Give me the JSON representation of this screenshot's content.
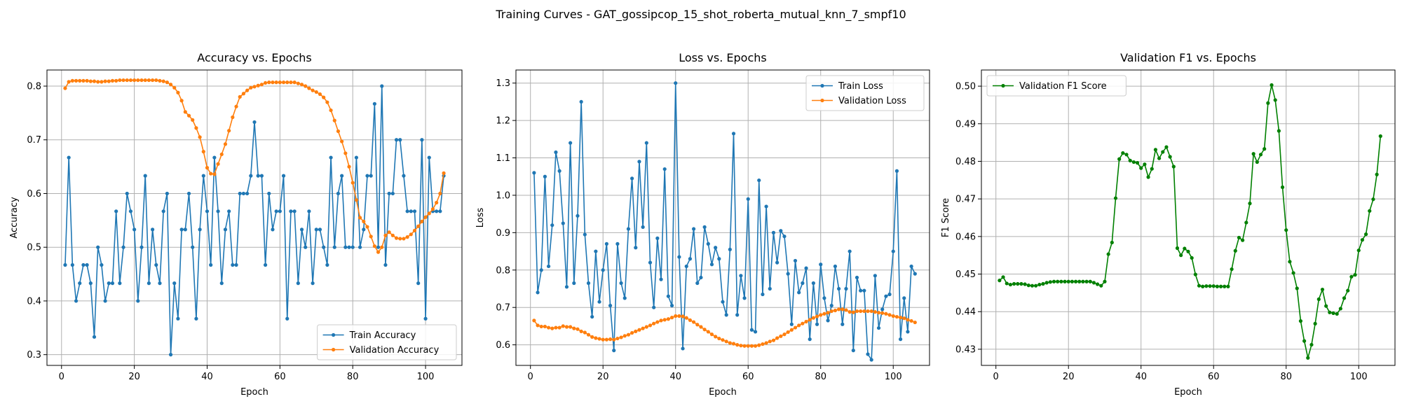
{
  "suptitle": "Training Curves - GAT_gossipcop_15_shot_roberta_mutual_knn_7_smpf10",
  "colors": {
    "train": "#1f77b4",
    "validation": "#ff7f0e",
    "f1": "#008000",
    "grid": "#b0b0b0"
  },
  "chart_data": [
    {
      "type": "line",
      "title": "Accuracy vs. Epochs",
      "xlabel": "Epoch",
      "ylabel": "Accuracy",
      "xlim": [
        -4,
        110
      ],
      "ylim": [
        0.28,
        0.83
      ],
      "xticks": [
        0,
        20,
        40,
        60,
        80,
        100
      ],
      "yticks": [
        0.3,
        0.4,
        0.5,
        0.6,
        0.7,
        0.8
      ],
      "ytick_decimals": 1,
      "grid": true,
      "legend_position": "lower-right",
      "series": [
        {
          "name": "Train Accuracy",
          "color": "#1f77b4",
          "x_start": 1,
          "values": [
            0.467,
            0.667,
            0.467,
            0.4,
            0.433,
            0.467,
            0.467,
            0.433,
            0.333,
            0.5,
            0.467,
            0.4,
            0.433,
            0.433,
            0.567,
            0.433,
            0.5,
            0.6,
            0.567,
            0.533,
            0.4,
            0.5,
            0.633,
            0.433,
            0.533,
            0.467,
            0.433,
            0.567,
            0.6,
            0.3,
            0.433,
            0.367,
            0.533,
            0.533,
            0.6,
            0.5,
            0.367,
            0.533,
            0.633,
            0.567,
            0.467,
            0.667,
            0.567,
            0.433,
            0.533,
            0.567,
            0.467,
            0.467,
            0.6,
            0.6,
            0.6,
            0.633,
            0.733,
            0.633,
            0.633,
            0.467,
            0.6,
            0.533,
            0.567,
            0.567,
            0.633,
            0.367,
            0.567,
            0.567,
            0.433,
            0.533,
            0.5,
            0.567,
            0.433,
            0.533,
            0.533,
            0.5,
            0.467,
            0.667,
            0.5,
            0.6,
            0.633,
            0.5,
            0.5,
            0.5,
            0.667,
            0.5,
            0.533,
            0.633,
            0.633,
            0.767,
            0.5,
            0.8,
            0.467,
            0.6,
            0.6,
            0.7,
            0.7,
            0.633,
            0.567,
            0.567,
            0.567,
            0.433,
            0.7,
            0.367,
            0.667,
            0.567,
            0.567,
            0.567,
            0.633
          ]
        },
        {
          "name": "Validation Accuracy",
          "color": "#ff7f0e",
          "x_start": 1,
          "values": [
            0.796,
            0.808,
            0.81,
            0.81,
            0.81,
            0.81,
            0.81,
            0.809,
            0.809,
            0.808,
            0.808,
            0.809,
            0.809,
            0.81,
            0.81,
            0.811,
            0.811,
            0.811,
            0.811,
            0.811,
            0.811,
            0.811,
            0.811,
            0.811,
            0.811,
            0.811,
            0.81,
            0.809,
            0.807,
            0.803,
            0.797,
            0.788,
            0.773,
            0.752,
            0.745,
            0.737,
            0.722,
            0.705,
            0.678,
            0.648,
            0.637,
            0.636,
            0.655,
            0.673,
            0.692,
            0.717,
            0.742,
            0.762,
            0.78,
            0.786,
            0.792,
            0.797,
            0.799,
            0.801,
            0.803,
            0.806,
            0.807,
            0.807,
            0.807,
            0.807,
            0.807,
            0.807,
            0.807,
            0.807,
            0.805,
            0.803,
            0.8,
            0.796,
            0.792,
            0.789,
            0.785,
            0.779,
            0.77,
            0.755,
            0.736,
            0.716,
            0.697,
            0.675,
            0.65,
            0.62,
            0.588,
            0.555,
            0.548,
            0.538,
            0.52,
            0.502,
            0.491,
            0.5,
            0.522,
            0.528,
            0.522,
            0.517,
            0.516,
            0.516,
            0.519,
            0.524,
            0.531,
            0.539,
            0.548,
            0.556,
            0.563,
            0.571,
            0.583,
            0.6,
            0.638
          ]
        }
      ]
    },
    {
      "type": "line",
      "title": "Loss vs. Epochs",
      "xlabel": "Epoch",
      "ylabel": "Loss",
      "xlim": [
        -4,
        110
      ],
      "ylim": [
        0.545,
        1.335
      ],
      "xticks": [
        0,
        20,
        40,
        60,
        80,
        100
      ],
      "yticks": [
        0.6,
        0.7,
        0.8,
        0.9,
        1.0,
        1.1,
        1.2,
        1.3
      ],
      "ytick_decimals": 1,
      "grid": true,
      "legend_position": "top-right",
      "series": [
        {
          "name": "Train Loss",
          "color": "#1f77b4",
          "x_start": 1,
          "values": [
            1.06,
            0.74,
            0.8,
            1.05,
            0.81,
            0.92,
            1.115,
            1.065,
            0.925,
            0.755,
            1.14,
            0.765,
            0.945,
            1.25,
            0.895,
            0.765,
            0.675,
            0.85,
            0.715,
            0.8,
            0.87,
            0.705,
            0.585,
            0.87,
            0.765,
            0.725,
            0.91,
            1.045,
            0.86,
            1.09,
            0.915,
            1.14,
            0.82,
            0.7,
            0.885,
            0.775,
            1.07,
            0.73,
            0.705,
            1.3,
            0.835,
            0.59,
            0.81,
            0.83,
            0.91,
            0.765,
            0.78,
            0.915,
            0.87,
            0.815,
            0.86,
            0.83,
            0.715,
            0.68,
            0.855,
            1.165,
            0.68,
            0.785,
            0.725,
            0.99,
            0.64,
            0.635,
            1.04,
            0.735,
            0.97,
            0.75,
            0.9,
            0.82,
            0.905,
            0.89,
            0.79,
            0.655,
            0.825,
            0.74,
            0.765,
            0.805,
            0.615,
            0.765,
            0.655,
            0.815,
            0.725,
            0.665,
            0.705,
            0.81,
            0.75,
            0.655,
            0.75,
            0.85,
            0.585,
            0.78,
            0.745,
            0.745,
            0.575,
            0.56,
            0.785,
            0.645,
            0.695,
            0.73,
            0.735,
            0.85,
            1.065,
            0.615,
            0.725,
            0.635,
            0.81,
            0.79
          ]
        },
        {
          "name": "Validation Loss",
          "color": "#ff7f0e",
          "x_start": 1,
          "values": [
            0.665,
            0.652,
            0.649,
            0.649,
            0.646,
            0.644,
            0.646,
            0.646,
            0.65,
            0.648,
            0.648,
            0.644,
            0.642,
            0.636,
            0.633,
            0.627,
            0.621,
            0.618,
            0.616,
            0.614,
            0.614,
            0.615,
            0.614,
            0.617,
            0.62,
            0.624,
            0.627,
            0.632,
            0.636,
            0.64,
            0.644,
            0.648,
            0.652,
            0.657,
            0.661,
            0.665,
            0.667,
            0.669,
            0.673,
            0.677,
            0.677,
            0.676,
            0.672,
            0.666,
            0.661,
            0.654,
            0.648,
            0.641,
            0.635,
            0.628,
            0.622,
            0.617,
            0.613,
            0.609,
            0.605,
            0.603,
            0.6,
            0.598,
            0.597,
            0.597,
            0.597,
            0.597,
            0.599,
            0.602,
            0.605,
            0.609,
            0.612,
            0.618,
            0.623,
            0.628,
            0.634,
            0.64,
            0.646,
            0.652,
            0.657,
            0.662,
            0.667,
            0.672,
            0.676,
            0.68,
            0.683,
            0.686,
            0.69,
            0.692,
            0.695,
            0.695,
            0.693,
            0.688,
            0.687,
            0.69,
            0.69,
            0.69,
            0.69,
            0.69,
            0.688,
            0.686,
            0.685,
            0.683,
            0.68,
            0.677,
            0.675,
            0.673,
            0.671,
            0.667,
            0.664,
            0.66
          ]
        }
      ]
    },
    {
      "type": "line",
      "title": "Validation F1 vs. Epochs",
      "xlabel": "Epoch",
      "ylabel": "F1 Score",
      "xlim": [
        -4,
        110
      ],
      "ylim": [
        0.4257,
        0.5043
      ],
      "xticks": [
        0,
        20,
        40,
        60,
        80,
        100
      ],
      "yticks": [
        0.43,
        0.44,
        0.45,
        0.46,
        0.47,
        0.48,
        0.49,
        0.5
      ],
      "ytick_decimals": 2,
      "grid": true,
      "legend_position": "top-left",
      "series": [
        {
          "name": "Validation F1 Score",
          "color": "#008000",
          "x_start": 1,
          "values": [
            0.4483,
            0.4492,
            0.4475,
            0.4472,
            0.4474,
            0.4474,
            0.4474,
            0.4473,
            0.447,
            0.4469,
            0.4469,
            0.4472,
            0.4474,
            0.4477,
            0.4479,
            0.448,
            0.448,
            0.448,
            0.448,
            0.448,
            0.448,
            0.448,
            0.448,
            0.448,
            0.448,
            0.448,
            0.4477,
            0.4473,
            0.4469,
            0.448,
            0.4553,
            0.4584,
            0.4702,
            0.4806,
            0.4822,
            0.4818,
            0.4802,
            0.4798,
            0.4796,
            0.4782,
            0.4792,
            0.4758,
            0.478,
            0.4831,
            0.4808,
            0.4825,
            0.4838,
            0.4812,
            0.4786,
            0.4569,
            0.455,
            0.4568,
            0.456,
            0.4543,
            0.4499,
            0.4469,
            0.4467,
            0.4468,
            0.4468,
            0.4468,
            0.4467,
            0.4467,
            0.4467,
            0.4467,
            0.4513,
            0.4562,
            0.4597,
            0.459,
            0.4637,
            0.4688,
            0.482,
            0.4798,
            0.4818,
            0.4833,
            0.4955,
            0.5003,
            0.4963,
            0.4881,
            0.4731,
            0.4617,
            0.4533,
            0.4503,
            0.4462,
            0.4375,
            0.4322,
            0.4277,
            0.4312,
            0.4368,
            0.4433,
            0.4459,
            0.4415,
            0.4398,
            0.4396,
            0.4394,
            0.4408,
            0.4436,
            0.4456,
            0.4493,
            0.4498,
            0.4563,
            0.4591,
            0.4606,
            0.4668,
            0.4699,
            0.4765,
            0.4867
          ]
        }
      ]
    }
  ]
}
